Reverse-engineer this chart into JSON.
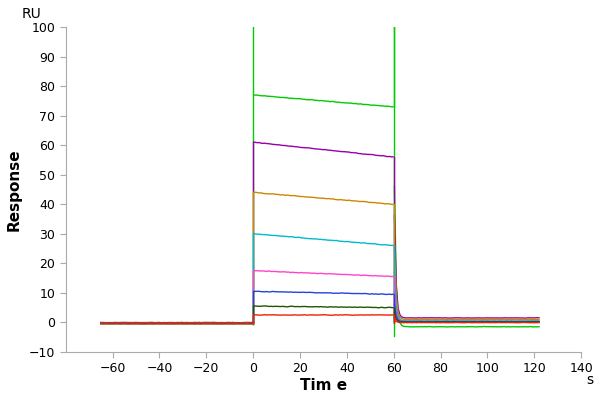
{
  "title": "",
  "xlabel": "Tim e",
  "xlabel_suffix": "s",
  "ylabel": "Response",
  "ylabel_top": "RU",
  "xlim": [
    -80,
    140
  ],
  "ylim": [
    -10,
    100
  ],
  "xticks": [
    -60,
    -40,
    -20,
    0,
    20,
    40,
    60,
    80,
    100,
    120,
    140
  ],
  "yticks": [
    -10,
    0,
    10,
    20,
    30,
    40,
    50,
    60,
    70,
    80,
    90,
    100
  ],
  "curves": [
    {
      "color": "#00cc00",
      "baseline": -0.5,
      "assoc_start": 77,
      "assoc_end": 73,
      "dissoc_flat": -1.5,
      "spike_up": 100,
      "spike_down": 100
    },
    {
      "color": "#9900aa",
      "baseline": -0.5,
      "assoc_start": 61,
      "assoc_end": 56,
      "dissoc_flat": 1.5,
      "spike_up": null,
      "spike_down": null
    },
    {
      "color": "#cc8800",
      "baseline": -0.5,
      "assoc_start": 44,
      "assoc_end": 40,
      "dissoc_flat": 1.0,
      "spike_up": null,
      "spike_down": null
    },
    {
      "color": "#00bbcc",
      "baseline": -0.3,
      "assoc_start": 30,
      "assoc_end": 26,
      "dissoc_flat": 0.5,
      "spike_up": null,
      "spike_down": null
    },
    {
      "color": "#ff44cc",
      "baseline": -0.2,
      "assoc_start": 17.5,
      "assoc_end": 15.5,
      "dissoc_flat": 0.3,
      "spike_up": null,
      "spike_down": null
    },
    {
      "color": "#2244dd",
      "baseline": -0.2,
      "assoc_start": 10.5,
      "assoc_end": 9.5,
      "dissoc_flat": 0.2,
      "spike_up": null,
      "spike_down": null
    },
    {
      "color": "#225500",
      "baseline": -0.1,
      "assoc_start": 5.5,
      "assoc_end": 5.0,
      "dissoc_flat": 0.1,
      "spike_up": null,
      "spike_down": null
    },
    {
      "color": "#ee2200",
      "baseline": -0.1,
      "assoc_start": 2.5,
      "assoc_end": 2.5,
      "dissoc_flat": -0.1,
      "spike_up": null,
      "spike_down": null
    }
  ],
  "background_color": "#ffffff",
  "figsize": [
    6.0,
    4.0
  ],
  "dpi": 100
}
